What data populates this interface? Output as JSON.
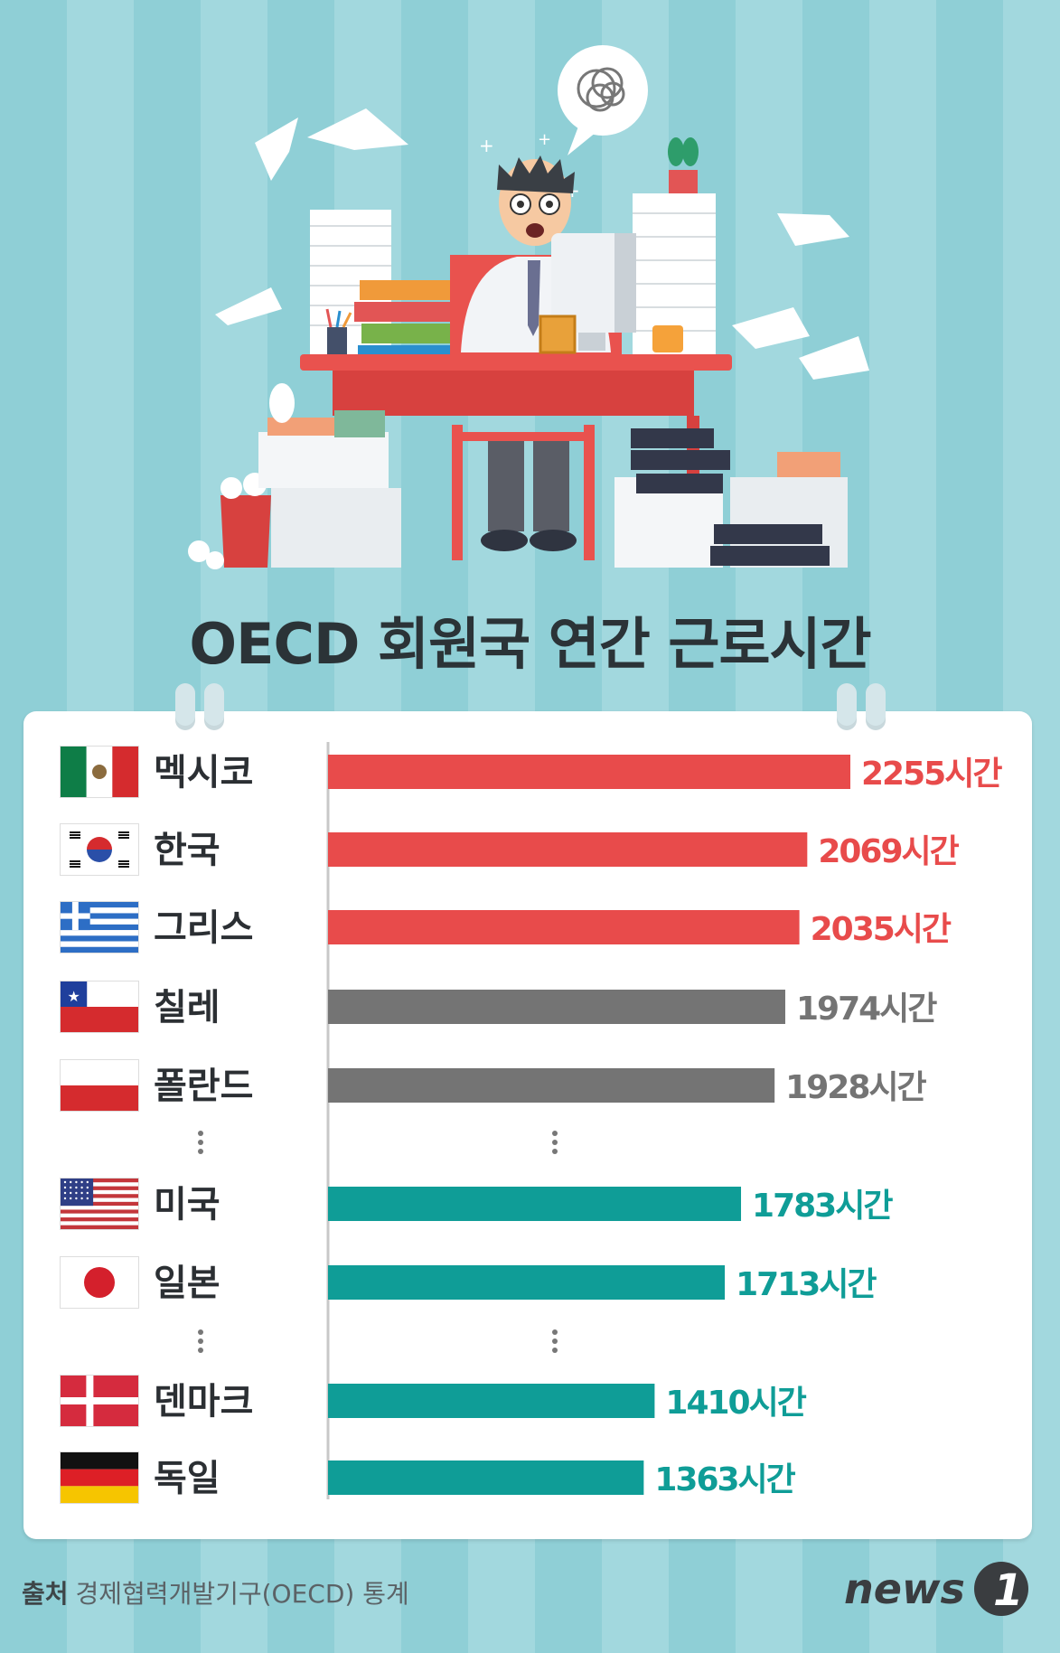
{
  "chart_data": {
    "type": "bar",
    "orientation": "horizontal",
    "title": "OECD 회원국 연간 근로시간",
    "unit": "시간",
    "categories": [
      "멕시코",
      "한국",
      "그리스",
      "칠레",
      "폴란드",
      "미국",
      "일본",
      "덴마크",
      "독일"
    ],
    "values": [
      2255,
      2069,
      2035,
      1974,
      1928,
      1783,
      1713,
      1410,
      1363
    ],
    "value_labels": [
      "2255시간",
      "2069시간",
      "2035시간",
      "1974시간",
      "1928시간",
      "1783시간",
      "1713시간",
      "1410시간",
      "1363시간"
    ],
    "colors": [
      "#e84b4b",
      "#e84b4b",
      "#e84b4b",
      "#747474",
      "#747474",
      "#0f9d97",
      "#0f9d97",
      "#0f9d97",
      "#0f9d97"
    ],
    "flag_icons": [
      "mexico-flag-icon",
      "korea-flag-icon",
      "greece-flag-icon",
      "chile-flag-icon",
      "poland-flag-icon",
      "usa-flag-icon",
      "japan-flag-icon",
      "denmark-flag-icon",
      "germany-flag-icon"
    ],
    "gaps_after_index": [
      4,
      6
    ],
    "xlim": [
      0,
      2255
    ]
  },
  "footer": {
    "source_label": "출처",
    "source_text": "경제협력개발기구(OECD) 통계"
  },
  "logo_text": "news",
  "logo_mark": "1"
}
